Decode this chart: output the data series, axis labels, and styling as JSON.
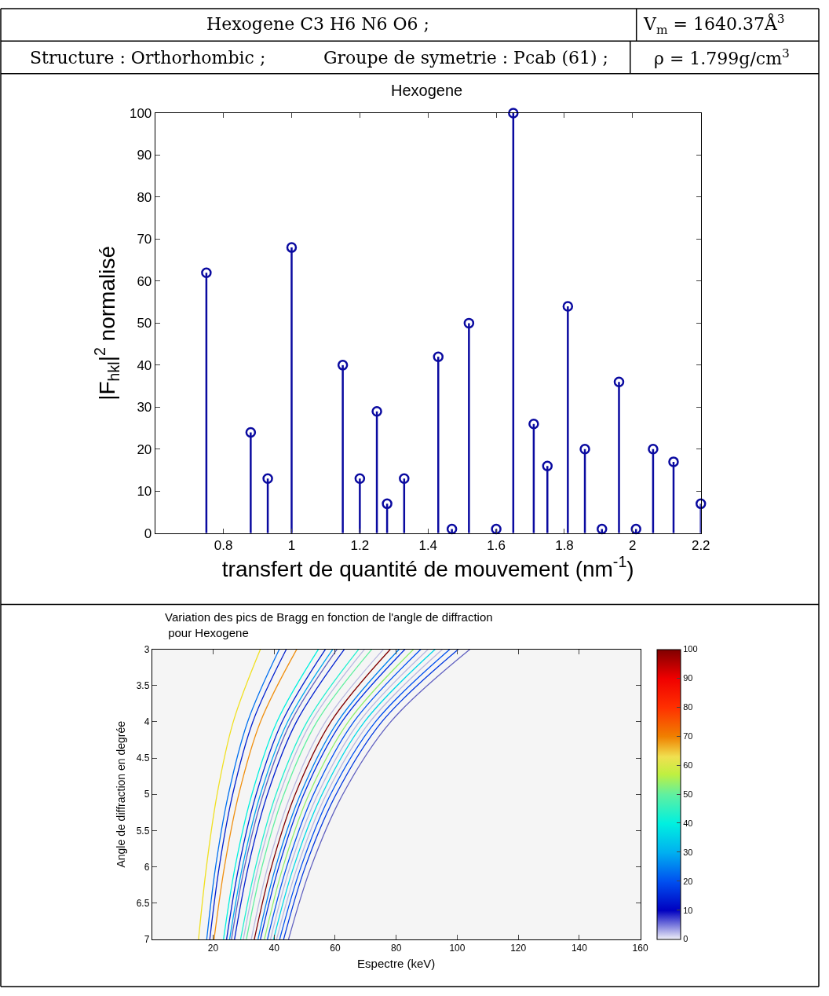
{
  "chart_data": [
    {
      "type": "lollipop",
      "title": "Hexogene",
      "xlabel": "transfert de quantité de mouvement (nm$^{-1}$)",
      "ylabel": "|F$_{hkl}$|$^{2}$ normalisé",
      "annotations": [
        "Hexogene C3 H6 N6 O6 ;",
        "V$_{m}$ = 1640.37Å$^{3}$",
        "Structure : Orthorhombic ;",
        "Groupe de symetrie : Pcab (61) ;",
        "ρ = 1.799g/cm$^{3}$"
      ],
      "x": [
        0.75,
        0.88,
        0.93,
        1.0,
        1.15,
        1.2,
        1.25,
        1.28,
        1.33,
        1.43,
        1.47,
        1.52,
        1.6,
        1.65,
        1.71,
        1.75,
        1.81,
        1.86,
        1.91,
        1.96,
        2.01,
        2.06,
        2.12,
        2.2
      ],
      "values": [
        62,
        24,
        13,
        68,
        40,
        13,
        29,
        7,
        13,
        42,
        1,
        50,
        1,
        100,
        26,
        16,
        54,
        20,
        1,
        36,
        1,
        20,
        17,
        7
      ],
      "color": "#0a0aa0",
      "marker": "circle",
      "xlim": [
        0.6,
        2.2
      ],
      "ylim": [
        0,
        100
      ],
      "xticks": [
        0.8,
        1,
        1.2,
        1.4,
        1.6,
        1.8,
        2,
        2.2
      ],
      "yticks": [
        0,
        10,
        20,
        30,
        40,
        50,
        60,
        70,
        80,
        90,
        100
      ]
    },
    {
      "type": "line",
      "title": "Variation des pics de Bragg en fonction de l'angle de diffraction\n pour Hexogene",
      "xlabel": "Espectre (keV)",
      "ylabel": "Angle de diffraction en degrée",
      "xlim": [
        0,
        160
      ],
      "ylim": [
        7,
        3
      ],
      "xticks": [
        20,
        40,
        60,
        80,
        100,
        120,
        140,
        160
      ],
      "yticks": [
        3,
        3.5,
        4,
        4.5,
        5,
        5.5,
        6,
        6.5,
        7
      ],
      "clim": [
        0,
        100
      ],
      "cticks": [
        0,
        10,
        20,
        30,
        40,
        50,
        60,
        70,
        80,
        90,
        100
      ],
      "series": [
        {
          "color": "#f0e020",
          "x": [
            35.5,
            26.6,
            21.3,
            17.8,
            15.2
          ],
          "values": [
            3,
            4,
            5,
            6,
            7
          ]
        },
        {
          "color": "#0070f0",
          "x": [
            41.7,
            31.3,
            25.0,
            20.8,
            17.9
          ],
          "values": [
            3,
            4,
            5,
            6,
            7
          ]
        },
        {
          "color": "#0020d0",
          "x": [
            44.0,
            33.0,
            26.4,
            22.0,
            18.9
          ],
          "values": [
            3,
            4,
            5,
            6,
            7
          ]
        },
        {
          "color": "#f09010",
          "x": [
            47.4,
            35.5,
            28.4,
            23.7,
            20.3
          ],
          "values": [
            3,
            4,
            5,
            6,
            7
          ]
        },
        {
          "color": "#00f0e0",
          "x": [
            54.5,
            40.9,
            32.7,
            27.2,
            23.4
          ],
          "values": [
            3,
            4,
            5,
            6,
            7
          ]
        },
        {
          "color": "#0020d0",
          "x": [
            56.8,
            42.6,
            34.1,
            28.4,
            24.4
          ],
          "values": [
            3,
            4,
            5,
            6,
            7
          ]
        },
        {
          "color": "#00a8f0",
          "x": [
            59.2,
            44.4,
            35.5,
            29.6,
            25.4
          ],
          "values": [
            3,
            4,
            5,
            6,
            7
          ]
        },
        {
          "color": "#6060c0",
          "x": [
            60.6,
            45.5,
            36.4,
            30.3,
            26.0
          ],
          "values": [
            3,
            4,
            5,
            6,
            7
          ]
        },
        {
          "color": "#0020d0",
          "x": [
            63.0,
            47.3,
            37.8,
            31.5,
            27.0
          ],
          "values": [
            3,
            4,
            5,
            6,
            7
          ]
        },
        {
          "color": "#20f0d0",
          "x": [
            67.7,
            50.8,
            40.6,
            33.9,
            29.0
          ],
          "values": [
            3,
            4,
            5,
            6,
            7
          ]
        },
        {
          "color": "#b8b8e0",
          "x": [
            69.6,
            52.2,
            41.8,
            34.8,
            29.9
          ],
          "values": [
            3,
            4,
            5,
            6,
            7
          ]
        },
        {
          "color": "#60f0a0",
          "x": [
            72.0,
            54.0,
            43.2,
            36.0,
            30.9
          ],
          "values": [
            3,
            4,
            5,
            6,
            7
          ]
        },
        {
          "color": "#b8b8e0",
          "x": [
            75.8,
            56.8,
            45.5,
            37.9,
            32.5
          ],
          "values": [
            3,
            4,
            5,
            6,
            7
          ]
        },
        {
          "color": "#800000",
          "x": [
            78.1,
            58.6,
            46.9,
            39.1,
            33.5
          ],
          "values": [
            3,
            4,
            5,
            6,
            7
          ]
        },
        {
          "color": "#0080f0",
          "x": [
            81.0,
            60.8,
            48.6,
            40.5,
            34.7
          ],
          "values": [
            3,
            4,
            5,
            6,
            7
          ]
        },
        {
          "color": "#0030e0",
          "x": [
            82.9,
            62.2,
            49.7,
            41.5,
            35.5
          ],
          "values": [
            3,
            4,
            5,
            6,
            7
          ]
        },
        {
          "color": "#90f070",
          "x": [
            85.7,
            64.3,
            51.4,
            42.9,
            36.8
          ],
          "values": [
            3,
            4,
            5,
            6,
            7
          ]
        },
        {
          "color": "#0050f0",
          "x": [
            88.1,
            66.1,
            52.9,
            44.1,
            37.8
          ],
          "values": [
            3,
            4,
            5,
            6,
            7
          ]
        },
        {
          "color": "#b8b8e0",
          "x": [
            90.5,
            67.9,
            54.3,
            45.2,
            38.8
          ],
          "values": [
            3,
            4,
            5,
            6,
            7
          ]
        },
        {
          "color": "#00d8e8",
          "x": [
            92.8,
            69.6,
            55.7,
            46.4,
            39.8
          ],
          "values": [
            3,
            4,
            5,
            6,
            7
          ]
        },
        {
          "color": "#b8b8e0",
          "x": [
            95.2,
            71.4,
            57.1,
            47.6,
            40.8
          ],
          "values": [
            3,
            4,
            5,
            6,
            7
          ]
        },
        {
          "color": "#0050f0",
          "x": [
            97.6,
            73.2,
            58.5,
            48.8,
            41.8
          ],
          "values": [
            3,
            4,
            5,
            6,
            7
          ]
        },
        {
          "color": "#0038e0",
          "x": [
            100.4,
            75.3,
            60.3,
            50.2,
            43.1
          ],
          "values": [
            3,
            4,
            5,
            6,
            7
          ]
        },
        {
          "color": "#6060c0",
          "x": [
            104.2,
            78.2,
            62.5,
            52.1,
            44.7
          ],
          "values": [
            3,
            4,
            5,
            6,
            7
          ]
        }
      ]
    }
  ]
}
